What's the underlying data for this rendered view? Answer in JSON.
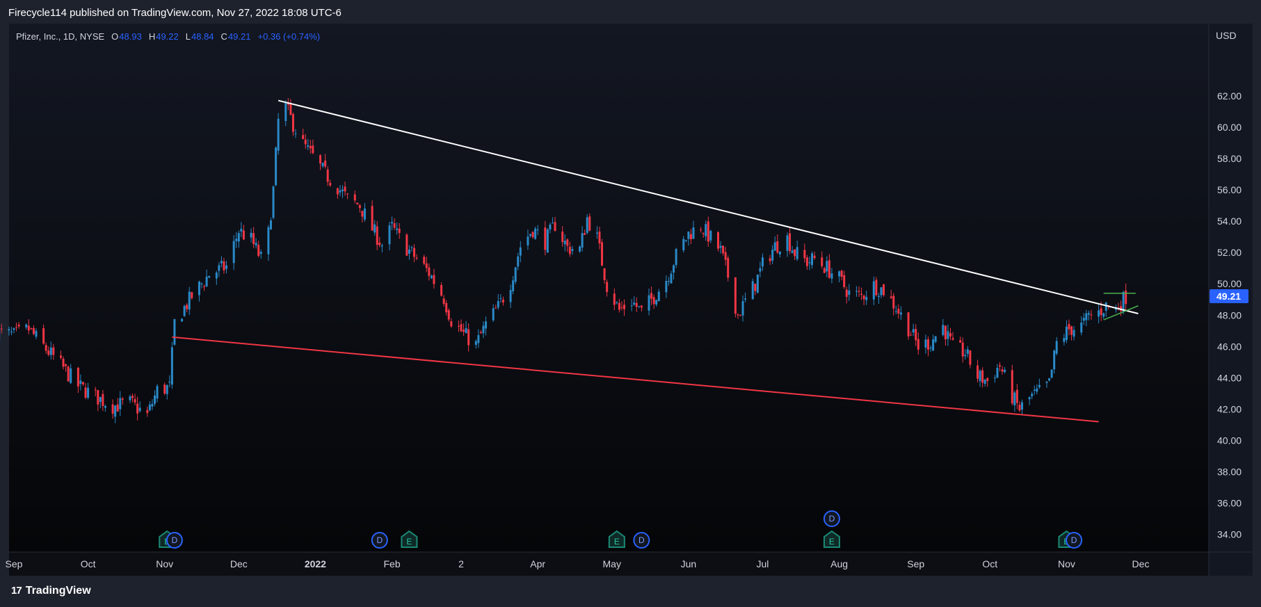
{
  "header": {
    "publish_text": "Firecycle114 published on TradingView.com, Nov 27, 2022 18:08 UTC-6"
  },
  "legend": {
    "symbol": "Pfizer, Inc., 1D, NYSE",
    "open_label": "O",
    "open": "48.93",
    "high_label": "H",
    "high": "49.22",
    "low_label": "L",
    "low": "48.84",
    "close_label": "C",
    "close": "49.21",
    "change": "+0.36 (+0.74%)"
  },
  "footer": {
    "brand": "TradingView",
    "brand_mark": "17"
  },
  "colors": {
    "up": "#2a8ac9",
    "down": "#f23645",
    "resistance": "#ffffff",
    "support": "#f23645",
    "pattern": "#4caf50",
    "price_badge": "#2962ff",
    "earnings": "#1b8a76",
    "dividend": "#2962ff"
  },
  "chart_data": {
    "type": "candlestick",
    "symbol": "PFE",
    "timeframe": "1D",
    "currency": "USD",
    "last_price": "49.21",
    "ylim": [
      33.5,
      63.5
    ],
    "y_ticks": [
      "62.00",
      "60.00",
      "58.00",
      "56.00",
      "54.00",
      "52.00",
      "50.00",
      "48.00",
      "46.00",
      "44.00",
      "42.00",
      "40.00",
      "38.00",
      "36.00",
      "34.00"
    ],
    "x_ticks": [
      {
        "label": "Sep",
        "date": "2021-09-01",
        "bold": false
      },
      {
        "label": "Oct",
        "date": "2021-10-01",
        "bold": false
      },
      {
        "label": "Nov",
        "date": "2021-11-01",
        "bold": false
      },
      {
        "label": "Dec",
        "date": "2021-12-01",
        "bold": false
      },
      {
        "label": "2022",
        "date": "2022-01-01",
        "bold": true
      },
      {
        "label": "Feb",
        "date": "2022-02-01",
        "bold": false
      },
      {
        "label": "2",
        "date": "2022-03-01",
        "bold": false
      },
      {
        "label": "Apr",
        "date": "2022-04-01",
        "bold": false
      },
      {
        "label": "May",
        "date": "2022-05-01",
        "bold": false
      },
      {
        "label": "Jun",
        "date": "2022-06-01",
        "bold": false
      },
      {
        "label": "Jul",
        "date": "2022-07-01",
        "bold": false
      },
      {
        "label": "Aug",
        "date": "2022-08-01",
        "bold": false
      },
      {
        "label": "Sep",
        "date": "2022-09-01",
        "bold": false
      },
      {
        "label": "Oct",
        "date": "2022-10-01",
        "bold": false
      },
      {
        "label": "Nov",
        "date": "2022-11-01",
        "bold": false
      },
      {
        "label": "Dec",
        "date": "2022-12-01",
        "bold": false
      }
    ],
    "close_path": [
      [
        "2021-08-25",
        46.9
      ],
      [
        "2021-09-01",
        46.7
      ],
      [
        "2021-09-07",
        47.1
      ],
      [
        "2021-09-13",
        46.0
      ],
      [
        "2021-09-20",
        44.8
      ],
      [
        "2021-09-27",
        43.5
      ],
      [
        "2021-10-04",
        42.8
      ],
      [
        "2021-10-11",
        42.2
      ],
      [
        "2021-10-18",
        42.4
      ],
      [
        "2021-10-25",
        41.6
      ],
      [
        "2021-10-29",
        43.2
      ],
      [
        "2021-11-03",
        43.4
      ],
      [
        "2021-11-05",
        47.5
      ],
      [
        "2021-11-12",
        49.2
      ],
      [
        "2021-11-19",
        50.6
      ],
      [
        "2021-11-26",
        51.1
      ],
      [
        "2021-12-01",
        53.4
      ],
      [
        "2021-12-06",
        52.8
      ],
      [
        "2021-12-10",
        51.6
      ],
      [
        "2021-12-13",
        53.2
      ],
      [
        "2021-12-15",
        56.0
      ],
      [
        "2021-12-17",
        60.4
      ],
      [
        "2021-12-20",
        61.3
      ],
      [
        "2021-12-23",
        60.2
      ],
      [
        "2021-12-27",
        58.9
      ],
      [
        "2021-12-31",
        58.1
      ],
      [
        "2022-01-05",
        57.0
      ],
      [
        "2022-01-10",
        56.2
      ],
      [
        "2022-01-14",
        55.4
      ],
      [
        "2022-01-19",
        55.0
      ],
      [
        "2022-01-24",
        53.5
      ],
      [
        "2022-01-28",
        52.5
      ],
      [
        "2022-02-01",
        53.6
      ],
      [
        "2022-02-04",
        52.9
      ],
      [
        "2022-02-08",
        52.1
      ],
      [
        "2022-02-11",
        51.6
      ],
      [
        "2022-02-16",
        50.7
      ],
      [
        "2022-02-22",
        49.1
      ],
      [
        "2022-02-25",
        47.7
      ],
      [
        "2022-03-02",
        46.8
      ],
      [
        "2022-03-07",
        46.1
      ],
      [
        "2022-03-11",
        47.4
      ],
      [
        "2022-03-16",
        48.5
      ],
      [
        "2022-03-21",
        50.1
      ],
      [
        "2022-03-25",
        52.4
      ],
      [
        "2022-03-30",
        53.5
      ],
      [
        "2022-04-04",
        52.7
      ],
      [
        "2022-04-08",
        53.8
      ],
      [
        "2022-04-13",
        52.3
      ],
      [
        "2022-04-18",
        52.2
      ],
      [
        "2022-04-21",
        54.2
      ],
      [
        "2022-04-25",
        52.9
      ],
      [
        "2022-04-29",
        49.9
      ],
      [
        "2022-05-04",
        48.3
      ],
      [
        "2022-05-09",
        48.9
      ],
      [
        "2022-05-13",
        48.2
      ],
      [
        "2022-05-18",
        49.2
      ],
      [
        "2022-05-23",
        50.3
      ],
      [
        "2022-05-27",
        51.8
      ],
      [
        "2022-06-01",
        53.2
      ],
      [
        "2022-06-06",
        53.7
      ],
      [
        "2022-06-10",
        52.9
      ],
      [
        "2022-06-14",
        52.1
      ],
      [
        "2022-06-17",
        50.5
      ],
      [
        "2022-06-21",
        48.0
      ],
      [
        "2022-06-23",
        48.6
      ],
      [
        "2022-06-28",
        50.0
      ],
      [
        "2022-07-01",
        51.2
      ],
      [
        "2022-07-06",
        52.4
      ],
      [
        "2022-07-11",
        52.9
      ],
      [
        "2022-07-14",
        52.0
      ],
      [
        "2022-07-19",
        51.4
      ],
      [
        "2022-07-22",
        51.6
      ],
      [
        "2022-07-27",
        51.0
      ],
      [
        "2022-08-01",
        50.3
      ],
      [
        "2022-08-05",
        49.4
      ],
      [
        "2022-08-10",
        49.2
      ],
      [
        "2022-08-15",
        49.9
      ],
      [
        "2022-08-19",
        49.6
      ],
      [
        "2022-08-24",
        48.5
      ],
      [
        "2022-08-29",
        47.2
      ],
      [
        "2022-09-02",
        46.0
      ],
      [
        "2022-09-07",
        46.3
      ],
      [
        "2022-09-12",
        47.3
      ],
      [
        "2022-09-16",
        45.9
      ],
      [
        "2022-09-21",
        45.6
      ],
      [
        "2022-09-26",
        44.1
      ],
      [
        "2022-09-30",
        43.8
      ],
      [
        "2022-10-05",
        44.8
      ],
      [
        "2022-10-10",
        42.8
      ],
      [
        "2022-10-13",
        42.0
      ],
      [
        "2022-10-17",
        42.7
      ],
      [
        "2022-10-21",
        43.1
      ],
      [
        "2022-10-25",
        43.6
      ],
      [
        "2022-10-28",
        46.2
      ],
      [
        "2022-11-02",
        47.1
      ],
      [
        "2022-11-07",
        47.3
      ],
      [
        "2022-11-10",
        47.9
      ],
      [
        "2022-11-14",
        48.2
      ],
      [
        "2022-11-17",
        48.6
      ],
      [
        "2022-11-21",
        48.4
      ],
      [
        "2022-11-25",
        49.21
      ]
    ],
    "annotations": [
      {
        "type": "trendline",
        "role": "resistance",
        "from": [
          "2021-12-17",
          61.7
        ],
        "to": [
          "2022-11-30",
          48.1
        ]
      },
      {
        "type": "trendline",
        "role": "support",
        "from": [
          "2021-11-04",
          46.6
        ],
        "to": [
          "2022-11-14",
          41.2
        ]
      },
      {
        "type": "hline",
        "role": "pattern-top",
        "from": [
          "2022-11-16",
          49.4
        ],
        "to": [
          "2022-11-29",
          49.4
        ]
      },
      {
        "type": "trendline",
        "role": "pattern-bottom",
        "from": [
          "2022-11-16",
          47.7
        ],
        "to": [
          "2022-11-30",
          48.6
        ]
      }
    ],
    "events": [
      {
        "type": "E",
        "date": "2021-11-02",
        "row": 1
      },
      {
        "type": "D",
        "date": "2021-11-05",
        "row": 1
      },
      {
        "type": "D",
        "date": "2022-01-27",
        "row": 1
      },
      {
        "type": "E",
        "date": "2022-02-08",
        "row": 1
      },
      {
        "type": "E",
        "date": "2022-05-03",
        "row": 1
      },
      {
        "type": "D",
        "date": "2022-05-13",
        "row": 1
      },
      {
        "type": "D",
        "date": "2022-07-29",
        "row": 0
      },
      {
        "type": "E",
        "date": "2022-07-29",
        "row": 1
      },
      {
        "type": "E",
        "date": "2022-11-01",
        "row": 1
      },
      {
        "type": "D",
        "date": "2022-11-04",
        "row": 1
      }
    ]
  }
}
